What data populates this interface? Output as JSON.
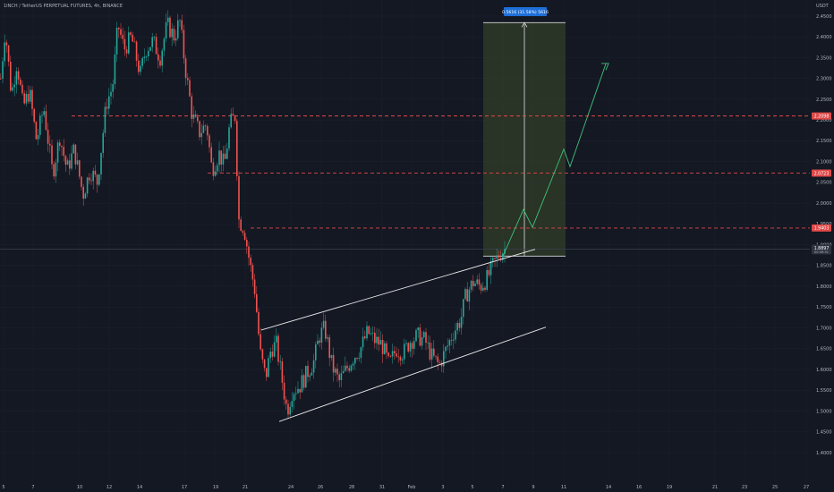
{
  "header": {
    "title": "1INCH / TetherUS PERPETUAL FUTURES, 4h, BINANCE",
    "currency": "USDT"
  },
  "colors": {
    "background": "#141823",
    "up": "#26a69a",
    "down": "#ef5350",
    "level_line": "#e04848",
    "channel": "#e8e8e8",
    "projection": "#3fc27a",
    "target_box": "#3a4a2a",
    "measure_label_bg": "#1e6fd8",
    "price_badge": "#2e3340"
  },
  "chart_data": {
    "type": "candlestick",
    "symbol": "1INCH / TetherUS PERPETUAL FUTURES",
    "interval": "4h",
    "exchange": "BINANCE",
    "y_unit": "USDT",
    "ylim": [
      1.38,
      2.48
    ],
    "y_ticks": [
      "2.4500",
      "2.4000",
      "2.3500",
      "2.3000",
      "2.2500",
      "2.2000",
      "2.1500",
      "2.1000",
      "2.0500",
      "2.0000",
      "1.9500",
      "1.9000",
      "1.8500",
      "1.8000",
      "1.7500",
      "1.7000",
      "1.6500",
      "1.6000",
      "1.5500",
      "1.5000",
      "1.4500",
      "1.4000"
    ],
    "x_ticks": [
      "5",
      "7",
      "10",
      "12",
      "14",
      "17",
      "19",
      "21",
      "24",
      "26",
      "28",
      "31",
      "Feb",
      "3",
      "5",
      "7",
      "9",
      "11",
      "14",
      "16",
      "19",
      "21",
      "23",
      "25",
      "27"
    ],
    "current_price": "1.8897",
    "current_price_sub": "00:39:51",
    "levels": [
      {
        "price": 2.2098,
        "label": "2.2098"
      },
      {
        "price": 2.0723,
        "label": "2.0723"
      },
      {
        "price": 1.9403,
        "label": "1.9403"
      }
    ],
    "measure_label": "0.5616 (31.58%) 5616",
    "anchors": [
      {
        "x": 0,
        "p": 2.3
      },
      {
        "x": 5,
        "p": 2.42
      },
      {
        "x": 12,
        "p": 2.26
      },
      {
        "x": 18,
        "p": 2.34
      },
      {
        "x": 25,
        "p": 2.23
      },
      {
        "x": 32,
        "p": 2.27
      },
      {
        "x": 40,
        "p": 2.15
      },
      {
        "x": 48,
        "p": 2.23
      },
      {
        "x": 58,
        "p": 2.07
      },
      {
        "x": 66,
        "p": 2.16
      },
      {
        "x": 74,
        "p": 2.08
      },
      {
        "x": 82,
        "p": 2.13
      },
      {
        "x": 92,
        "p": 2.02
      },
      {
        "x": 100,
        "p": 2.08
      },
      {
        "x": 108,
        "p": 2.05
      },
      {
        "x": 118,
        "p": 2.24
      },
      {
        "x": 125,
        "p": 2.28
      },
      {
        "x": 131,
        "p": 2.43
      },
      {
        "x": 138,
        "p": 2.37
      },
      {
        "x": 146,
        "p": 2.4
      },
      {
        "x": 156,
        "p": 2.31
      },
      {
        "x": 162,
        "p": 2.37
      },
      {
        "x": 170,
        "p": 2.39
      },
      {
        "x": 178,
        "p": 2.35
      },
      {
        "x": 186,
        "p": 2.43
      },
      {
        "x": 194,
        "p": 2.4
      },
      {
        "x": 200,
        "p": 2.44
      },
      {
        "x": 206,
        "p": 2.33
      },
      {
        "x": 214,
        "p": 2.21
      },
      {
        "x": 222,
        "p": 2.17
      },
      {
        "x": 230,
        "p": 2.19
      },
      {
        "x": 236,
        "p": 2.08
      },
      {
        "x": 244,
        "p": 2.12
      },
      {
        "x": 250,
        "p": 2.09
      },
      {
        "x": 256,
        "p": 2.19
      },
      {
        "x": 262,
        "p": 2.21
      },
      {
        "x": 266,
        "p": 1.96
      },
      {
        "x": 272,
        "p": 1.94
      },
      {
        "x": 278,
        "p": 1.86
      },
      {
        "x": 284,
        "p": 1.79
      },
      {
        "x": 290,
        "p": 1.64
      },
      {
        "x": 296,
        "p": 1.58
      },
      {
        "x": 302,
        "p": 1.65
      },
      {
        "x": 308,
        "p": 1.66
      },
      {
        "x": 314,
        "p": 1.58
      },
      {
        "x": 320,
        "p": 1.5
      },
      {
        "x": 326,
        "p": 1.55
      },
      {
        "x": 334,
        "p": 1.56
      },
      {
        "x": 342,
        "p": 1.59
      },
      {
        "x": 350,
        "p": 1.62
      },
      {
        "x": 356,
        "p": 1.68
      },
      {
        "x": 362,
        "p": 1.7
      },
      {
        "x": 370,
        "p": 1.61
      },
      {
        "x": 378,
        "p": 1.57
      },
      {
        "x": 386,
        "p": 1.6
      },
      {
        "x": 394,
        "p": 1.63
      },
      {
        "x": 402,
        "p": 1.65
      },
      {
        "x": 410,
        "p": 1.69
      },
      {
        "x": 418,
        "p": 1.67
      },
      {
        "x": 426,
        "p": 1.66
      },
      {
        "x": 434,
        "p": 1.61
      },
      {
        "x": 442,
        "p": 1.65
      },
      {
        "x": 450,
        "p": 1.64
      },
      {
        "x": 458,
        "p": 1.67
      },
      {
        "x": 466,
        "p": 1.68
      },
      {
        "x": 474,
        "p": 1.67
      },
      {
        "x": 482,
        "p": 1.63
      },
      {
        "x": 490,
        "p": 1.61
      },
      {
        "x": 498,
        "p": 1.65
      },
      {
        "x": 506,
        "p": 1.69
      },
      {
        "x": 514,
        "p": 1.72
      },
      {
        "x": 520,
        "p": 1.78
      },
      {
        "x": 528,
        "p": 1.81
      },
      {
        "x": 536,
        "p": 1.8
      },
      {
        "x": 544,
        "p": 1.82
      },
      {
        "x": 550,
        "p": 1.85
      },
      {
        "x": 558,
        "p": 1.88
      },
      {
        "x": 564,
        "p": 1.89
      }
    ]
  }
}
